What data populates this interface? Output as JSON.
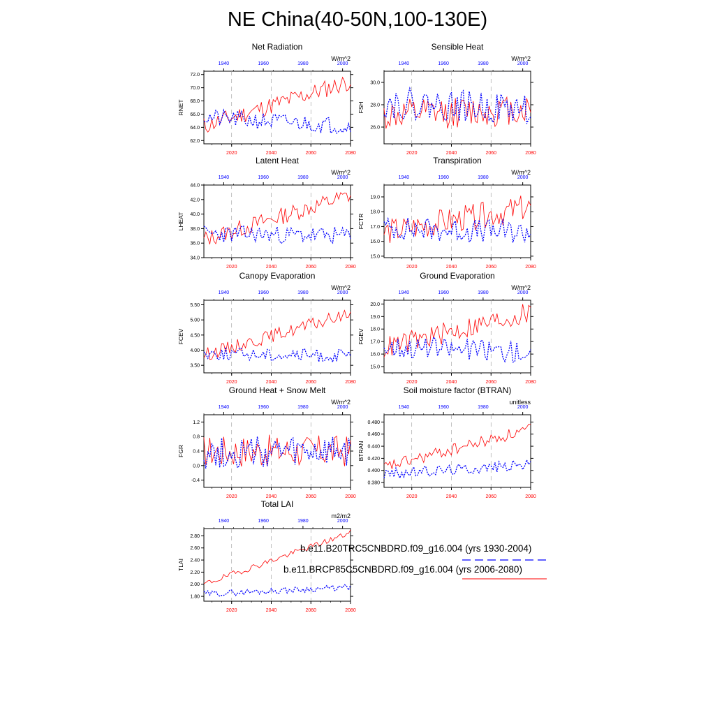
{
  "title": "NE China(40-50N,100-130E)",
  "colors": {
    "historical": "#0000ff",
    "future": "#ff0000",
    "axis": "#000000",
    "grid": "#999999"
  },
  "legend": {
    "historical_label": "b.e11.B20TRC5CNBDRD.f09_g16.004 (yrs 1930-2004)",
    "future_label": "b.e11.BRCP85C5CNBDRD.f09_g16.004 (yrs 2006-2080)"
  },
  "chart_data": [
    {
      "id": "rnet",
      "type": "line",
      "title": "Net Radiation",
      "ylabel": "RNET",
      "units": "W/m^2",
      "ylim": [
        61.5,
        72.5
      ],
      "yticks": [
        "62.0",
        "64.0",
        "66.0",
        "68.0",
        "70.0",
        "72.0"
      ],
      "bottom_ticks": [
        "2020",
        "2040",
        "2060",
        "2080"
      ],
      "top_ticks": [
        "1940",
        "1960",
        "1980",
        "2000"
      ],
      "series": [
        {
          "name": "b.e11.BRCP85C5CNBDRD.f09_g16.004",
          "period": "2006-2080",
          "start": 0.5,
          "mean_start": 64.2,
          "mean_end": 71.0,
          "amp": 1.4,
          "seed": 11
        },
        {
          "name": "b.e11.B20TRC5CNBDRD.f09_g16.004",
          "period": "1930-2004",
          "start": 0.5,
          "mean_start": 65.5,
          "mean_end": 64.2,
          "amp": 1.3,
          "seed": 21
        }
      ]
    },
    {
      "id": "fsh",
      "type": "line",
      "title": "Sensible Heat",
      "ylabel": "FSH",
      "units": "W/m^2",
      "ylim": [
        24.5,
        31.0
      ],
      "yticks": [
        "26.0",
        "28.0",
        "30.0"
      ],
      "bottom_ticks": [
        "2020",
        "2040",
        "2060",
        "2080"
      ],
      "top_ticks": [
        "1940",
        "1960",
        "1980",
        "2000"
      ],
      "series": [
        {
          "name": "b.e11.BRCP85C5CNBDRD.f09_g16.004",
          "period": "2006-2080",
          "start": 0.5,
          "mean_start": 27.0,
          "mean_end": 27.6,
          "amp": 1.4,
          "seed": 12
        },
        {
          "name": "b.e11.B20TRC5CNBDRD.f09_g16.004",
          "period": "1930-2004",
          "start": 0.5,
          "mean_start": 28.2,
          "mean_end": 27.6,
          "amp": 1.4,
          "seed": 22
        }
      ]
    },
    {
      "id": "lheat",
      "type": "line",
      "title": "Latent Heat",
      "ylabel": "LHEAT",
      "units": "W/m^2",
      "ylim": [
        34.0,
        44.0
      ],
      "yticks": [
        "34.0",
        "36.0",
        "38.0",
        "40.0",
        "42.0",
        "44.0"
      ],
      "bottom_ticks": [
        "2020",
        "2040",
        "2060",
        "2080"
      ],
      "top_ticks": [
        "1940",
        "1960",
        "1980",
        "2000"
      ],
      "series": [
        {
          "name": "b.e11.BRCP85C5CNBDRD.f09_g16.004",
          "period": "2006-2080",
          "start": 0.5,
          "mean_start": 36.5,
          "mean_end": 42.6,
          "amp": 1.2,
          "seed": 13
        },
        {
          "name": "b.e11.B20TRC5CNBDRD.f09_g16.004",
          "period": "1930-2004",
          "start": 0.5,
          "mean_start": 37.3,
          "mean_end": 37.0,
          "amp": 1.2,
          "seed": 23
        }
      ]
    },
    {
      "id": "fctr",
      "type": "line",
      "title": "Transpiration",
      "ylabel": "FCTR",
      "units": "W/m^2",
      "ylim": [
        14.9,
        19.8
      ],
      "yticks": [
        "15.0",
        "16.0",
        "17.0",
        "18.0",
        "19.0"
      ],
      "bottom_ticks": [
        "2020",
        "2040",
        "2060",
        "2080"
      ],
      "top_ticks": [
        "1940",
        "1960",
        "1980",
        "2000"
      ],
      "series": [
        {
          "name": "b.e11.BRCP85C5CNBDRD.f09_g16.004",
          "period": "2006-2080",
          "start": 0.5,
          "mean_start": 16.6,
          "mean_end": 18.3,
          "amp": 0.9,
          "seed": 14
        },
        {
          "name": "b.e11.B20TRC5CNBDRD.f09_g16.004",
          "period": "1930-2004",
          "start": 0.5,
          "mean_start": 16.9,
          "mean_end": 16.6,
          "amp": 0.8,
          "seed": 24
        }
      ]
    },
    {
      "id": "fcev",
      "type": "line",
      "title": "Canopy Evaporation",
      "ylabel": "FCEV",
      "units": "W/m^2",
      "ylim": [
        3.25,
        5.65
      ],
      "yticks": [
        "3.50",
        "4.00",
        "4.50",
        "5.00",
        "5.50"
      ],
      "bottom_ticks": [
        "2020",
        "2040",
        "2060",
        "2080"
      ],
      "top_ticks": [
        "1940",
        "1960",
        "1980",
        "2000"
      ],
      "series": [
        {
          "name": "b.e11.BRCP85C5CNBDRD.f09_g16.004",
          "period": "2006-2080",
          "start": 0.5,
          "mean_start": 3.85,
          "mean_end": 5.2,
          "amp": 0.22,
          "seed": 15
        },
        {
          "name": "b.e11.B20TRC5CNBDRD.f09_g16.004",
          "period": "1930-2004",
          "start": 0.5,
          "mean_start": 3.9,
          "mean_end": 3.8,
          "amp": 0.22,
          "seed": 25
        }
      ]
    },
    {
      "id": "fgev",
      "type": "line",
      "title": "Ground Evaporation",
      "ylabel": "FGEV",
      "units": "W/m^2",
      "ylim": [
        14.5,
        20.3
      ],
      "yticks": [
        "15.0",
        "16.0",
        "17.0",
        "18.0",
        "19.0",
        "20.0"
      ],
      "bottom_ticks": [
        "2020",
        "2040",
        "2060",
        "2080"
      ],
      "top_ticks": [
        "1940",
        "1960",
        "1980",
        "2000"
      ],
      "series": [
        {
          "name": "b.e11.BRCP85C5CNBDRD.f09_g16.004",
          "period": "2006-2080",
          "start": 0.5,
          "mean_start": 16.5,
          "mean_end": 19.3,
          "amp": 0.9,
          "seed": 16
        },
        {
          "name": "b.e11.B20TRC5CNBDRD.f09_g16.004",
          "period": "1930-2004",
          "start": 0.5,
          "mean_start": 16.6,
          "mean_end": 16.2,
          "amp": 0.9,
          "seed": 26
        }
      ]
    },
    {
      "id": "fgr",
      "type": "line",
      "title": "Ground Heat + Snow Melt",
      "ylabel": "FGR",
      "units": "W/m^2",
      "ylim": [
        -0.6,
        1.4
      ],
      "yticks": [
        "-0.4",
        "0.0",
        "0.4",
        "0.8",
        "1.2"
      ],
      "bottom_ticks": [
        "2020",
        "2040",
        "2060",
        "2080"
      ],
      "top_ticks": [
        "1940",
        "1960",
        "1980",
        "2000"
      ],
      "series": [
        {
          "name": "b.e11.BRCP85C5CNBDRD.f09_g16.004",
          "period": "2006-2080",
          "start": 0.5,
          "mean_start": 0.4,
          "mean_end": 0.4,
          "amp": 0.45,
          "seed": 17
        },
        {
          "name": "b.e11.B20TRC5CNBDRD.f09_g16.004",
          "period": "1930-2004",
          "start": 0.5,
          "mean_start": 0.35,
          "mean_end": 0.35,
          "amp": 0.45,
          "seed": 27
        }
      ]
    },
    {
      "id": "btran",
      "type": "line",
      "title": "Soil moisture factor (BTRAN)",
      "ylabel": "BTRAN",
      "units": "unitless",
      "ylim": [
        0.372,
        0.492
      ],
      "yticks": [
        "0.380",
        "0.400",
        "0.420",
        "0.440",
        "0.460",
        "0.480"
      ],
      "bottom_ticks": [
        "2020",
        "2040",
        "2060",
        "2080"
      ],
      "top_ticks": [
        "1940",
        "1960",
        "1980",
        "2000"
      ],
      "series": [
        {
          "name": "b.e11.BRCP85C5CNBDRD.f09_g16.004",
          "period": "2006-2080",
          "start": 0.5,
          "mean_start": 0.405,
          "mean_end": 0.468,
          "amp": 0.01,
          "seed": 18
        },
        {
          "name": "b.e11.B20TRC5CNBDRD.f09_g16.004",
          "period": "1930-2004",
          "start": 0.5,
          "mean_start": 0.394,
          "mean_end": 0.41,
          "amp": 0.009,
          "seed": 28
        }
      ]
    },
    {
      "id": "tlai",
      "type": "line",
      "title": "Total LAI",
      "ylabel": "TLAI",
      "units": "m2/m2",
      "ylim": [
        1.72,
        2.92
      ],
      "yticks": [
        "1.80",
        "2.00",
        "2.20",
        "2.40",
        "2.60",
        "2.80"
      ],
      "bottom_ticks": [
        "2020",
        "2040",
        "2060",
        "2080"
      ],
      "top_ticks": [
        "1940",
        "1960",
        "1980",
        "2000"
      ],
      "series": [
        {
          "name": "b.e11.BRCP85C5CNBDRD.f09_g16.004",
          "period": "2006-2080",
          "start": 0.5,
          "mean_start": 2.0,
          "mean_end": 2.85,
          "amp": 0.05,
          "seed": 19
        },
        {
          "name": "b.e11.B20TRC5CNBDRD.f09_g16.004",
          "period": "1930-2004",
          "start": 0.5,
          "mean_start": 1.84,
          "mean_end": 1.95,
          "amp": 0.05,
          "seed": 29
        }
      ]
    }
  ]
}
